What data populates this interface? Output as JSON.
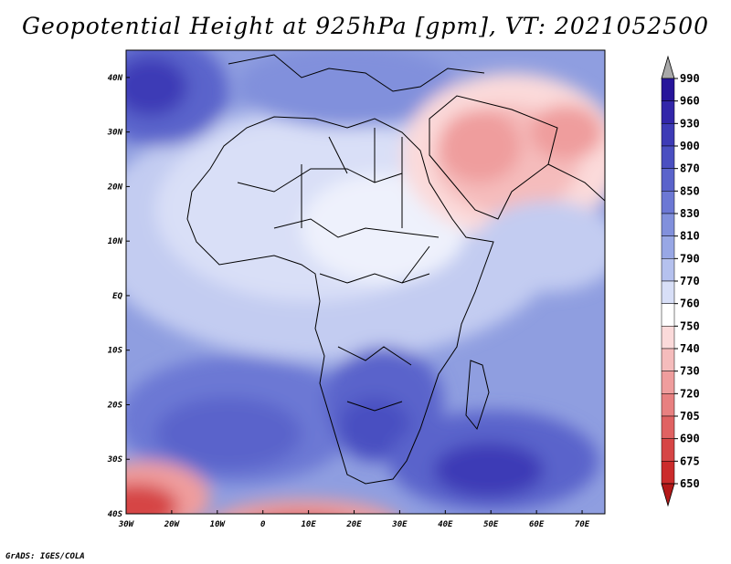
{
  "title": "Geopotential Height at 925hPa [gpm], VT: 2021052500",
  "credit": "GrADS: IGES/COLA",
  "map": {
    "lat_ticks": [
      "40N",
      "30N",
      "20N",
      "10N",
      "EQ",
      "10S",
      "20S",
      "30S",
      "40S"
    ],
    "lon_ticks": [
      "30W",
      "20W",
      "10W",
      "0",
      "10E",
      "20E",
      "30E",
      "40E",
      "50E",
      "60E",
      "70E"
    ],
    "lon_range": [
      -30,
      75
    ],
    "lat_range": [
      -40,
      45
    ]
  },
  "colorbar": {
    "labels": [
      "990",
      "960",
      "930",
      "900",
      "870",
      "850",
      "830",
      "810",
      "790",
      "770",
      "760",
      "750",
      "740",
      "730",
      "720",
      "705",
      "690",
      "675",
      "650"
    ],
    "colors": [
      "#27159a",
      "#3226a9",
      "#3d3bb6",
      "#4a4fc1",
      "#5a63cb",
      "#6c78d4",
      "#8190dc",
      "#98a7e5",
      "#b5c1ee",
      "#d8dff7",
      "#ffffff",
      "#fbdada",
      "#f5bcbc",
      "#ef9d9d",
      "#e88080",
      "#e06262",
      "#d64545",
      "#cb2b2b",
      "#b31818"
    ],
    "top_arrow_color": "#a9a9a9",
    "bottom_arrow_color": "#b31818"
  }
}
